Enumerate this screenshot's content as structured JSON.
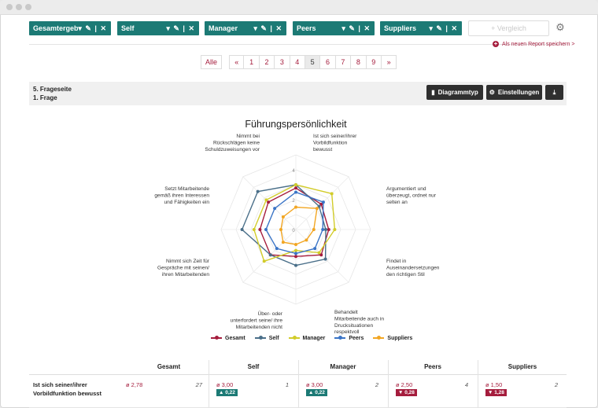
{
  "filters": [
    {
      "label": "Gesamtergebnis",
      "controls": "▾ ✎ | ✕"
    },
    {
      "label": "Self",
      "controls": "▾ ✎ | ✕"
    },
    {
      "label": "Manager",
      "controls": "▾ ✎ | ✕"
    },
    {
      "label": "Peers",
      "controls": "▾ ✎ | ✕"
    },
    {
      "label": "Suppliers",
      "controls": "▾ ✎ | ✕"
    }
  ],
  "compare": {
    "label": "+ Vergleich"
  },
  "save_link": "Als neuen Report speichern >",
  "pagination": {
    "all_label": "Alle",
    "prev": "«",
    "next": "»",
    "pages": [
      "1",
      "2",
      "3",
      "4",
      "5",
      "6",
      "7",
      "8",
      "9"
    ],
    "active_page": "5"
  },
  "section": {
    "page_title": "5. Frageseite",
    "question_title": "1. Frage",
    "chart_type_button": "Diagrammtyp",
    "settings_button": "Einstellungen",
    "download_icon": "download-icon"
  },
  "chart_data": {
    "type": "radar",
    "title": "Führungspersönlichkeit",
    "axes": [
      "Ist sich seiner/ihrer Vorbildfunktion bewusst",
      "Argumentiert und überzeugt, ordnet nur selten an",
      "Findet in Auseinandersetzungen den richtigen Stil",
      "Behandelt Mitarbeitende auch in Drucksituationen respektvoll",
      "Über- oder unterfordert seine/ ihre Mitarbeitenden nicht",
      "Nimmt sich Zeit für Gespräche mit seinen/ ihren Mitarbeitenden",
      "Setzt Mitarbeitende gemäß ihren Interessen und Fähigkeiten ein",
      "Nimmt bei Rückschlägen keine Schuldzuweisungen vor"
    ],
    "axis_label_lines": [
      [
        "Ist sich seiner/ihrer",
        "Vorbildfunktion",
        "bewusst"
      ],
      [
        "Argumentiert und",
        "überzeugt, ordnet nur",
        "selten an"
      ],
      [
        "Findet in",
        "Auseinandersetzungen",
        "den richtigen Stil"
      ],
      [
        "Behandelt",
        "Mitarbeitende auch in",
        "Drucksituationen",
        "respektvoll"
      ],
      [
        "Über- oder",
        "unterfordert seine/ ihre",
        "Mitarbeitenden nicht"
      ],
      [
        "Nimmt sich Zeit für",
        "Gespräche mit seinen/",
        "ihren Mitarbeitenden"
      ],
      [
        "Setzt Mitarbeitende",
        "gemäß ihren Interessen",
        "und Fähigkeiten ein"
      ],
      [
        "Nimmt bei",
        "Rückschlägen keine",
        "Schuldzuweisungen vor"
      ]
    ],
    "rlim": [
      0,
      5
    ],
    "tick_labels": [
      "0",
      "2",
      "4"
    ],
    "tick_values": [
      0,
      2,
      4
    ],
    "series": [
      {
        "name": "Gesamt",
        "color": "#a51d3d",
        "values": [
          2.78,
          2.4,
          2.2,
          2.4,
          1.8,
          2.4,
          2.4,
          2.6
        ]
      },
      {
        "name": "Self",
        "color": "#4a6f89",
        "values": [
          3.0,
          2.2,
          2.0,
          2.8,
          2.4,
          2.4,
          3.6,
          3.6
        ]
      },
      {
        "name": "Manager",
        "color": "#d2cc2a",
        "values": [
          3.0,
          3.4,
          2.6,
          2.2,
          1.4,
          3.0,
          2.8,
          2.8
        ]
      },
      {
        "name": "Peers",
        "color": "#3a74c6",
        "values": [
          2.5,
          2.6,
          1.8,
          1.8,
          1.6,
          1.8,
          2.0,
          2.0
        ]
      },
      {
        "name": "Suppliers",
        "color": "#f2a623",
        "values": [
          1.5,
          2.0,
          1.2,
          1.0,
          1.0,
          1.2,
          1.0,
          1.2
        ]
      }
    ]
  },
  "table": {
    "headers": [
      "Gesamt",
      "Self",
      "Manager",
      "Peers",
      "Suppliers"
    ],
    "rows": [
      {
        "label": "Ist sich seiner/ihrer Vorbildfunktion bewusst",
        "label_line1": "Ist sich seiner/ihrer",
        "label_line2": "Vorbildfunktion bewusst",
        "cells": [
          {
            "mean": "ø 2,78",
            "n": "27",
            "delta": ""
          },
          {
            "mean": "ø 3,00",
            "n": "1",
            "delta": "▲ 0,22",
            "delta_color": "#1c7a75"
          },
          {
            "mean": "ø 3,00",
            "n": "2",
            "delta": "▲ 0,22",
            "delta_color": "#1c7a75"
          },
          {
            "mean": "ø 2,50",
            "n": "4",
            "delta": "▼ 0,28",
            "delta_color": "#a51d3d"
          },
          {
            "mean": "ø 1,50",
            "n": "2",
            "delta": "▼ 1,28",
            "delta_color": "#a51d3d"
          }
        ]
      }
    ]
  }
}
